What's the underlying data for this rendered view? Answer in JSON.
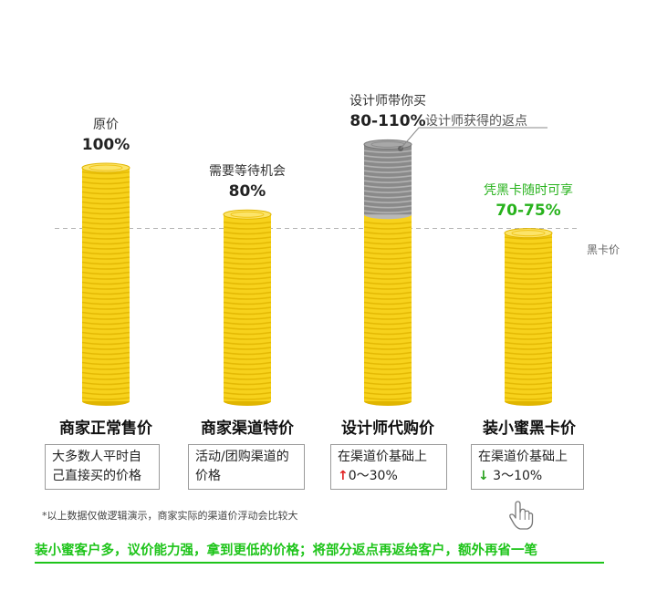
{
  "chart_data": {
    "type": "bar",
    "categories": [
      "商家正常售价",
      "商家渠道特价",
      "设计师代购价",
      "装小蜜黑卡价"
    ],
    "bars": [
      {
        "label": "原价",
        "percent_label": "100%",
        "value": 100,
        "highlight": false
      },
      {
        "label": "需要等待机会",
        "percent_label": "80%",
        "value": 80,
        "highlight": false
      },
      {
        "label": "设计师带你买",
        "percent_label": "80-110%",
        "value": 110,
        "base_value": 80,
        "highlight": false
      },
      {
        "label": "凭黑卡随时可享",
        "percent_label": "70-75%",
        "value": 72,
        "highlight": true
      }
    ],
    "series": [
      {
        "name": "",
        "values": [
          100,
          80,
          80,
          72
        ],
        "color": "#f7d21c"
      },
      {
        "name": "",
        "values": [
          0,
          0,
          30,
          0
        ],
        "color": "#8a8a8a"
      }
    ],
    "callout": "设计师获得的返点",
    "reference_line": {
      "label": "黑卡价",
      "value": 74
    },
    "ylim": [
      0,
      120
    ]
  },
  "descriptions": [
    {
      "lines": [
        "大多数人平时自",
        "己直接买的价格"
      ]
    },
    {
      "lines": [
        "活动/团购渠道的",
        "价格"
      ]
    },
    {
      "lines": [
        "在渠道价基础上"
      ],
      "arrow": "↑",
      "range": "0～30%"
    },
    {
      "lines": [
        "在渠道价基础上"
      ],
      "arrow": "↓",
      "range": " 3～10%"
    }
  ],
  "footnote": "*以上数据仅做逻辑演示，商家实际的渠道价浮动会比较大",
  "tagline": "装小蜜客户多，议价能力强，拿到更低的价格；将部分返点再返给客户，额外再省一笔",
  "colors": {
    "gold": "#f7d21c",
    "gold_dark": "#e0b500",
    "gray": "#8a8a8a",
    "green": "#27b21c",
    "arrow_red": "#e02020"
  },
  "icons": {
    "hand": "hand-pointer-icon"
  }
}
